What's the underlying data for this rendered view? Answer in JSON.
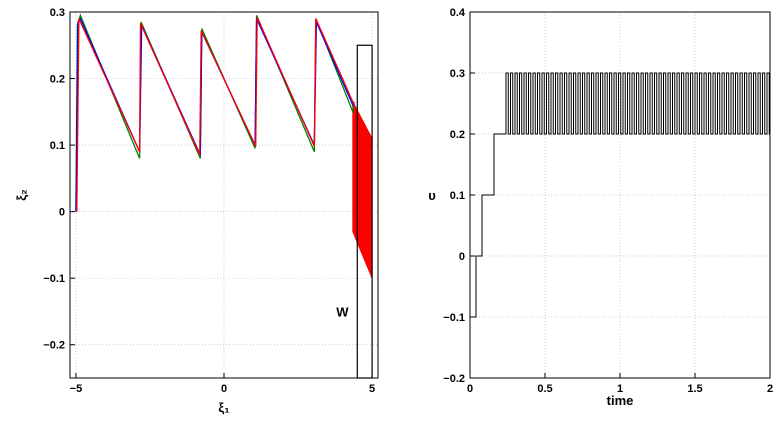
{
  "chart_data": [
    {
      "type": "line",
      "title": "",
      "xlabel": "ξ₁",
      "ylabel": "ξ₂",
      "xlim": [
        -5.2,
        5.2
      ],
      "ylim": [
        -0.25,
        0.3
      ],
      "x_ticks": [
        -5,
        0,
        5
      ],
      "y_ticks": [
        -0.2,
        -0.1,
        0,
        0.1,
        0.2,
        0.3
      ],
      "x_tick_labels": [
        "−5",
        "0",
        "5"
      ],
      "y_tick_labels": [
        "−0.2",
        "−0.1",
        "0",
        "0.1",
        "0.2",
        "0.3"
      ],
      "grid": true,
      "annotations": [
        {
          "text": "W",
          "x": 4.2,
          "y": -0.15
        }
      ],
      "region_W": {
        "x": [
          4.5,
          5.0
        ],
        "y": [
          -0.25,
          0.25
        ]
      },
      "series": [
        {
          "color": "#008000",
          "points": [
            [
              -5.0,
              0
            ],
            [
              -4.95,
              0.28
            ],
            [
              -4.85,
              0.295
            ],
            [
              -2.85,
              0.08
            ],
            [
              -2.8,
              0.285
            ],
            [
              -0.8,
              0.08
            ],
            [
              -0.75,
              0.275
            ],
            [
              1.05,
              0.095
            ],
            [
              1.1,
              0.295
            ],
            [
              3.05,
              0.09
            ],
            [
              3.1,
              0.29
            ],
            [
              4.35,
              0.15
            ],
            [
              4.4,
              0.16
            ]
          ]
        },
        {
          "color": "#0000ff",
          "points": [
            [
              -5.0,
              0
            ],
            [
              -4.93,
              0.285
            ],
            [
              -4.85,
              0.29
            ],
            [
              -2.85,
              0.09
            ],
            [
              -2.78,
              0.28
            ],
            [
              -0.8,
              0.085
            ],
            [
              -0.75,
              0.27
            ],
            [
              1.05,
              0.1
            ],
            [
              1.1,
              0.29
            ],
            [
              3.05,
              0.1
            ],
            [
              3.12,
              0.285
            ],
            [
              4.35,
              0.16
            ],
            [
              4.4,
              0.165
            ]
          ]
        },
        {
          "color": "#ff0000",
          "points": [
            [
              -4.97,
              0
            ],
            [
              -4.9,
              0.29
            ],
            [
              -2.85,
              0.09
            ],
            [
              -2.82,
              0.283
            ],
            [
              -0.82,
              0.085
            ],
            [
              -0.77,
              0.272
            ],
            [
              1.07,
              0.098
            ],
            [
              1.12,
              0.292
            ],
            [
              3.05,
              0.098
            ],
            [
              3.1,
              0.29
            ],
            [
              4.35,
              0.165
            ],
            [
              4.4,
              0.16
            ]
          ]
        }
      ],
      "filled_region": {
        "color": "#ff0000",
        "points": [
          [
            4.35,
            -0.03
          ],
          [
            4.35,
            0.165
          ],
          [
            5.0,
            0.11
          ],
          [
            5.0,
            -0.1
          ]
        ]
      }
    },
    {
      "type": "line",
      "title": "",
      "xlabel": "time",
      "ylabel": "υ",
      "xlim": [
        0,
        2
      ],
      "ylim": [
        -0.2,
        0.4
      ],
      "x_ticks": [
        0,
        0.5,
        1,
        1.5,
        2
      ],
      "y_ticks": [
        -0.2,
        -0.1,
        0,
        0.1,
        0.2,
        0.3,
        0.4
      ],
      "x_tick_labels": [
        "0",
        "0.5",
        "1",
        "1.5",
        "2"
      ],
      "y_tick_labels": [
        "−0.2",
        "−0.1",
        "0",
        "0.1",
        "0.2",
        "0.3",
        "0.4"
      ],
      "grid": true,
      "series": [
        {
          "color": "#000000",
          "steps": [
            [
              0,
              -0.1
            ],
            [
              0.04,
              0
            ],
            [
              0.08,
              0.1
            ],
            [
              0.16,
              0.2
            ],
            [
              0.24,
              0.3
            ]
          ],
          "oscillation": {
            "start": 0.24,
            "end": 2.0,
            "period": 0.03,
            "low": 0.2,
            "high": 0.3
          }
        }
      ]
    }
  ]
}
